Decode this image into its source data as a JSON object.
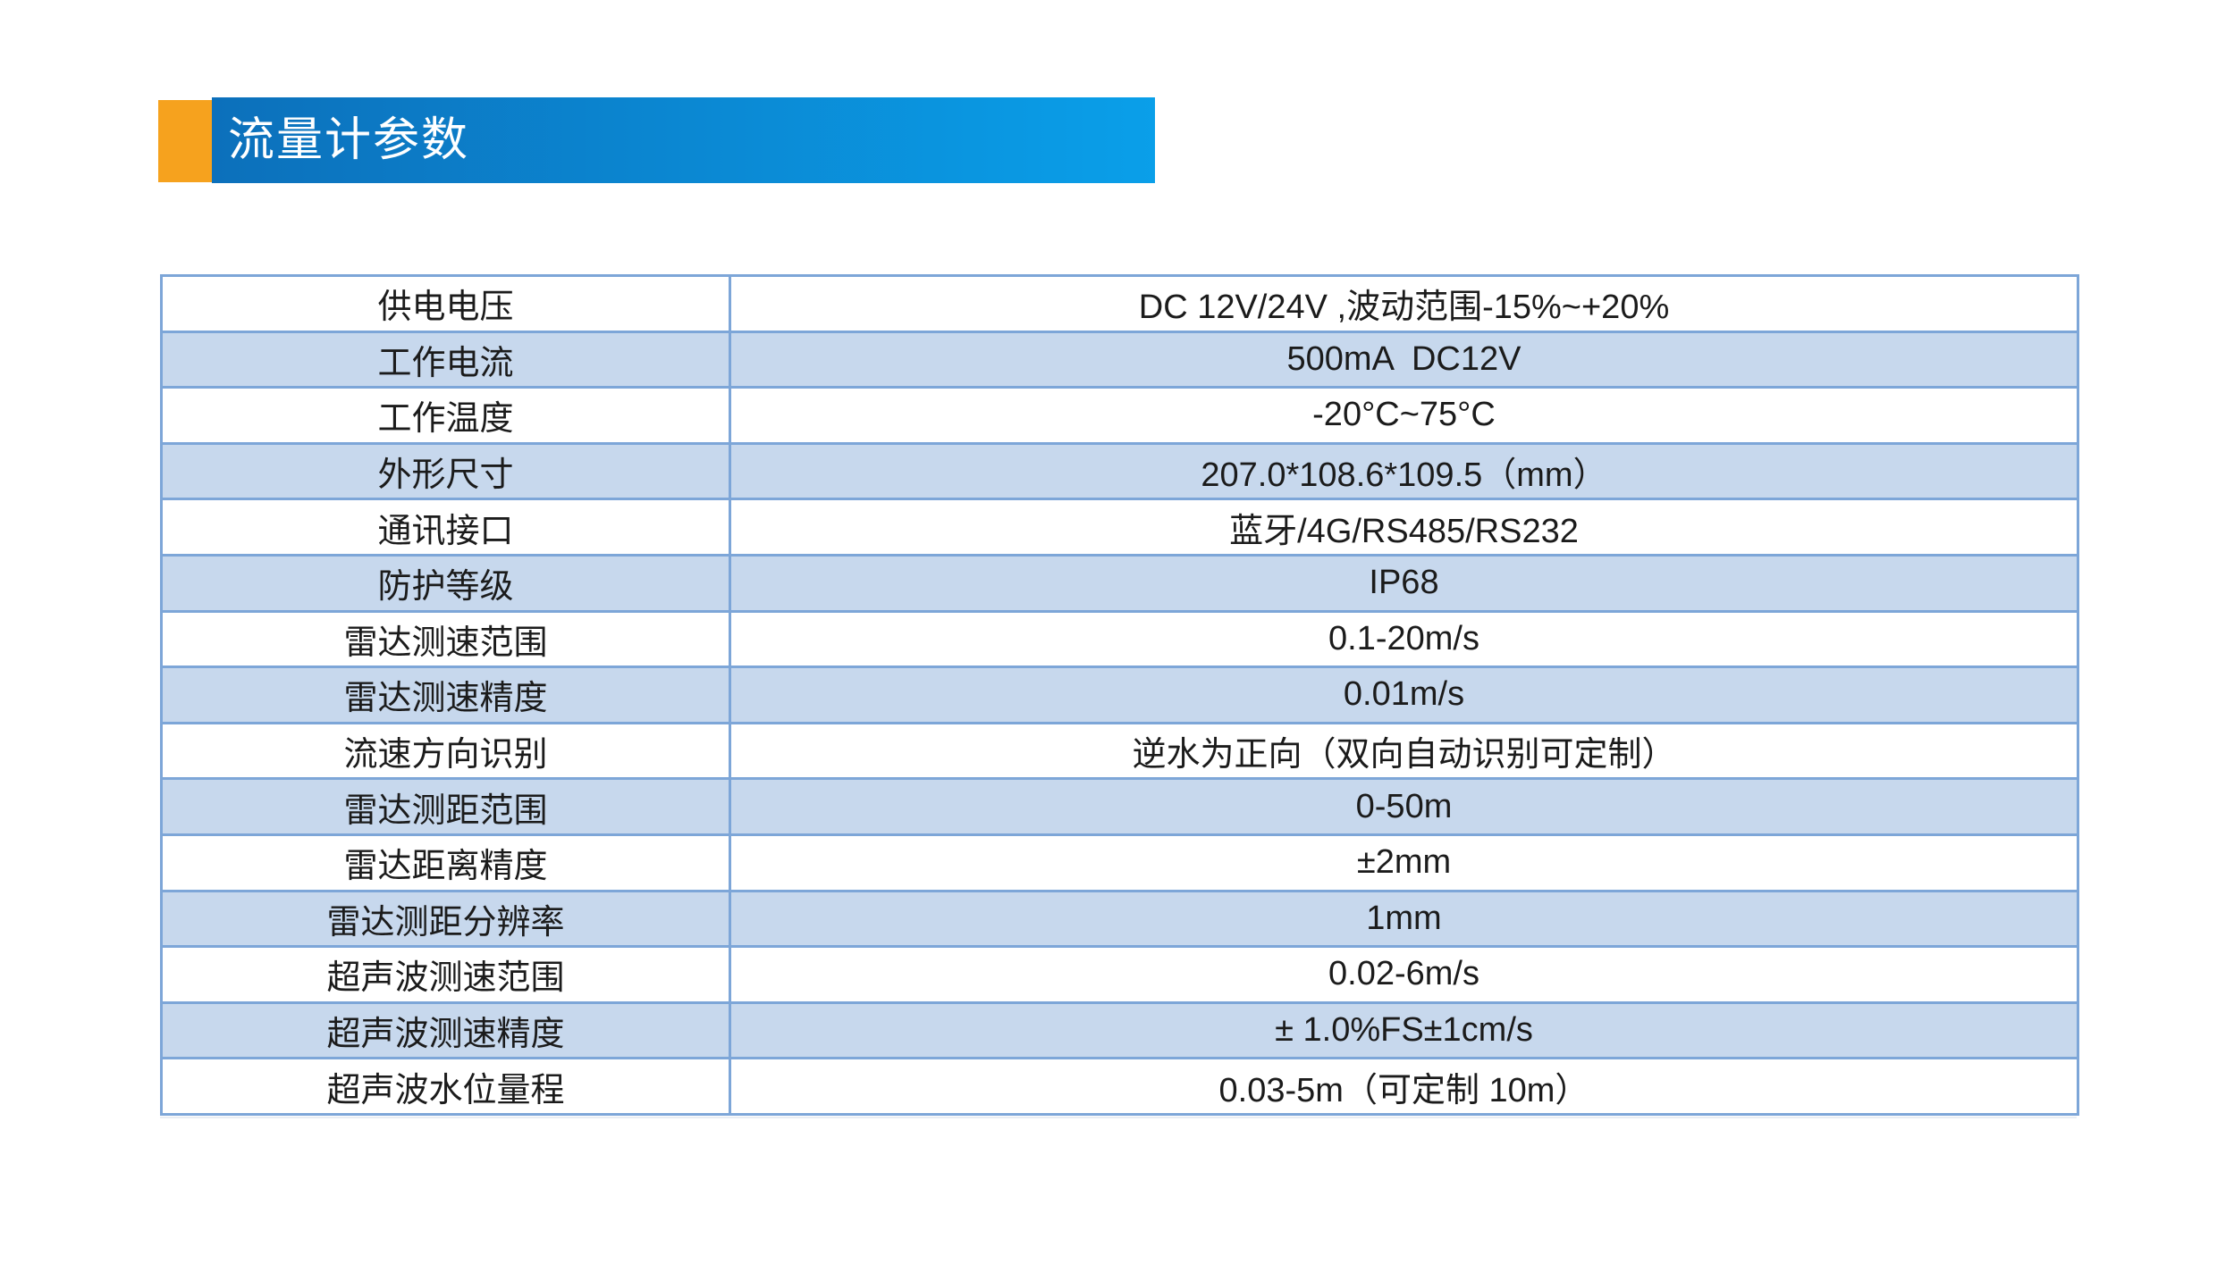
{
  "header": {
    "title": "流量计参数",
    "accent_color": "#F6A21E",
    "bar_gradient_start": "#0C70BB",
    "bar_gradient_end": "#0A9FE9",
    "text_color": "#FFFFFF"
  },
  "table": {
    "border_color": "#7DA6D8",
    "alt_row_color": "#C7D8ED",
    "text_color": "#1B1B1B",
    "rows": [
      {
        "label": "供电电压",
        "value": "DC 12V/24V ,波动范围-15%~+20%"
      },
      {
        "label": "工作电流",
        "value": "500mA  DC12V"
      },
      {
        "label": "工作温度",
        "value": "-20°C~75°C"
      },
      {
        "label": "外形尺寸",
        "value": "207.0*108.6*109.5（mm）"
      },
      {
        "label": "通讯接口",
        "value": "蓝牙/4G/RS485/RS232"
      },
      {
        "label": "防护等级",
        "value": "IP68"
      },
      {
        "label": "雷达测速范围",
        "value": "0.1-20m/s"
      },
      {
        "label": "雷达测速精度",
        "value": "0.01m/s"
      },
      {
        "label": "流速方向识别",
        "value": "逆水为正向（双向自动识别可定制）"
      },
      {
        "label": "雷达测距范围",
        "value": "0-50m"
      },
      {
        "label": "雷达距离精度",
        "value": "±2mm"
      },
      {
        "label": "雷达测距分辨率",
        "value": "1mm"
      },
      {
        "label": "超声波测速范围",
        "value": "0.02-6m/s"
      },
      {
        "label": "超声波测速精度",
        "value": "± 1.0%FS±1cm/s"
      },
      {
        "label": "超声波水位量程",
        "value": "0.03-5m（可定制 10m）"
      }
    ]
  }
}
